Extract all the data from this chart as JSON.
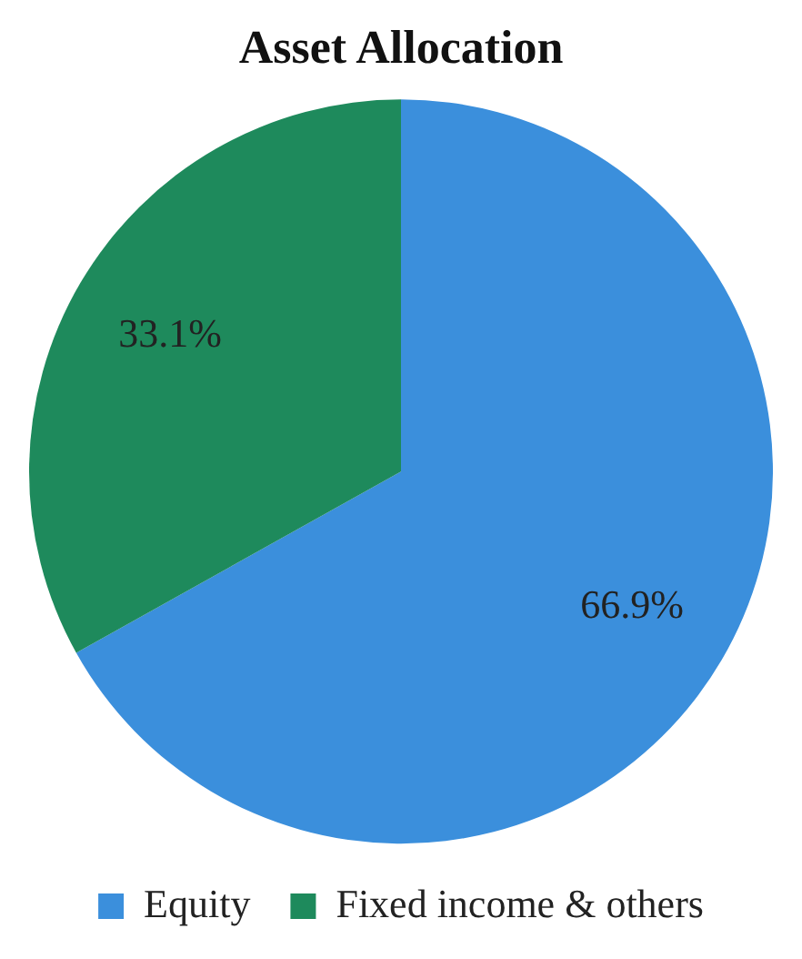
{
  "chart_data": {
    "type": "pie",
    "title": "Asset Allocation",
    "categories": [
      "Equity",
      "Fixed income & others"
    ],
    "values": [
      66.9,
      33.1
    ],
    "colors": [
      "#3b8fdc",
      "#1e8a5c"
    ],
    "value_labels": [
      "66.9%",
      "33.1%"
    ],
    "legend": "bottom"
  }
}
